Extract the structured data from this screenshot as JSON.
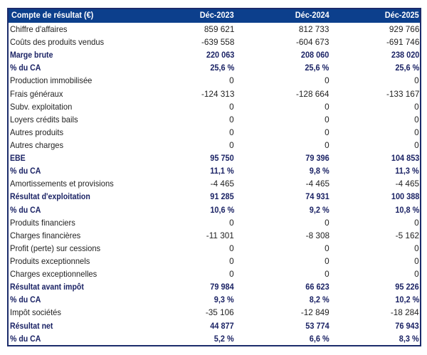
{
  "colors": {
    "header_background": "#0c3f8c",
    "header_text": "#ffffff",
    "emphasis_text": "#1b2365",
    "body_text": "#1f1f1f",
    "table_border": "#1b2b6b",
    "page_background": "#ffffff"
  },
  "table": {
    "title": "Compte de résultat (€)",
    "columns": [
      "Déc-2023",
      "Déc-2024",
      "Déc-2025"
    ],
    "rows": [
      {
        "label": "Chiffre d'affaires",
        "values": [
          "859 621",
          "812 733",
          "929 766"
        ],
        "emphasis": false
      },
      {
        "label": "Coûts des produits vendus",
        "values": [
          "-639 558",
          "-604 673",
          "-691 746"
        ],
        "emphasis": false
      },
      {
        "label": "Marge brute",
        "values": [
          "220 063",
          "208 060",
          "238 020"
        ],
        "emphasis": true
      },
      {
        "label": "% du CA",
        "values": [
          "25,6 %",
          "25,6 %",
          "25,6 %"
        ],
        "emphasis": true
      },
      {
        "label": "Production immobilisée",
        "values": [
          "0",
          "0",
          "0"
        ],
        "emphasis": false
      },
      {
        "label": "Frais généraux",
        "values": [
          "-124 313",
          "-128 664",
          "-133 167"
        ],
        "emphasis": false
      },
      {
        "label": "Subv. exploitation",
        "values": [
          "0",
          "0",
          "0"
        ],
        "emphasis": false
      },
      {
        "label": "Loyers crédits bails",
        "values": [
          "0",
          "0",
          "0"
        ],
        "emphasis": false
      },
      {
        "label": "Autres produits",
        "values": [
          "0",
          "0",
          "0"
        ],
        "emphasis": false
      },
      {
        "label": "Autres charges",
        "values": [
          "0",
          "0",
          "0"
        ],
        "emphasis": false
      },
      {
        "label": "EBE",
        "values": [
          "95 750",
          "79 396",
          "104 853"
        ],
        "emphasis": true
      },
      {
        "label": "% du CA",
        "values": [
          "11,1 %",
          "9,8 %",
          "11,3 %"
        ],
        "emphasis": true
      },
      {
        "label": "Amortissements et provisions",
        "values": [
          "-4 465",
          "-4 465",
          "-4 465"
        ],
        "emphasis": false
      },
      {
        "label": "Résultat d'exploitation",
        "values": [
          "91 285",
          "74 931",
          "100 388"
        ],
        "emphasis": true
      },
      {
        "label": "% du CA",
        "values": [
          "10,6 %",
          "9,2 %",
          "10,8 %"
        ],
        "emphasis": true
      },
      {
        "label": "Produits financiers",
        "values": [
          "0",
          "0",
          "0"
        ],
        "emphasis": false
      },
      {
        "label": "Charges financières",
        "values": [
          "-11 301",
          "-8 308",
          "-5 162"
        ],
        "emphasis": false
      },
      {
        "label": "Profit (perte) sur cessions",
        "values": [
          "0",
          "0",
          "0"
        ],
        "emphasis": false
      },
      {
        "label": "Produits exceptionnels",
        "values": [
          "0",
          "0",
          "0"
        ],
        "emphasis": false
      },
      {
        "label": "Charges exceptionnelles",
        "values": [
          "0",
          "0",
          "0"
        ],
        "emphasis": false
      },
      {
        "label": "Résultat avant impôt",
        "values": [
          "79 984",
          "66 623",
          "95 226"
        ],
        "emphasis": true
      },
      {
        "label": "% du CA",
        "values": [
          "9,3 %",
          "8,2 %",
          "10,2 %"
        ],
        "emphasis": true
      },
      {
        "label": "Impôt sociétés",
        "values": [
          "-35 106",
          "-12 849",
          "-18 284"
        ],
        "emphasis": false
      },
      {
        "label": "Résultat net",
        "values": [
          "44 877",
          "53 774",
          "76 943"
        ],
        "emphasis": true
      },
      {
        "label": "% du CA",
        "values": [
          "5,2 %",
          "6,6 %",
          "8,3 %"
        ],
        "emphasis": true
      }
    ]
  }
}
